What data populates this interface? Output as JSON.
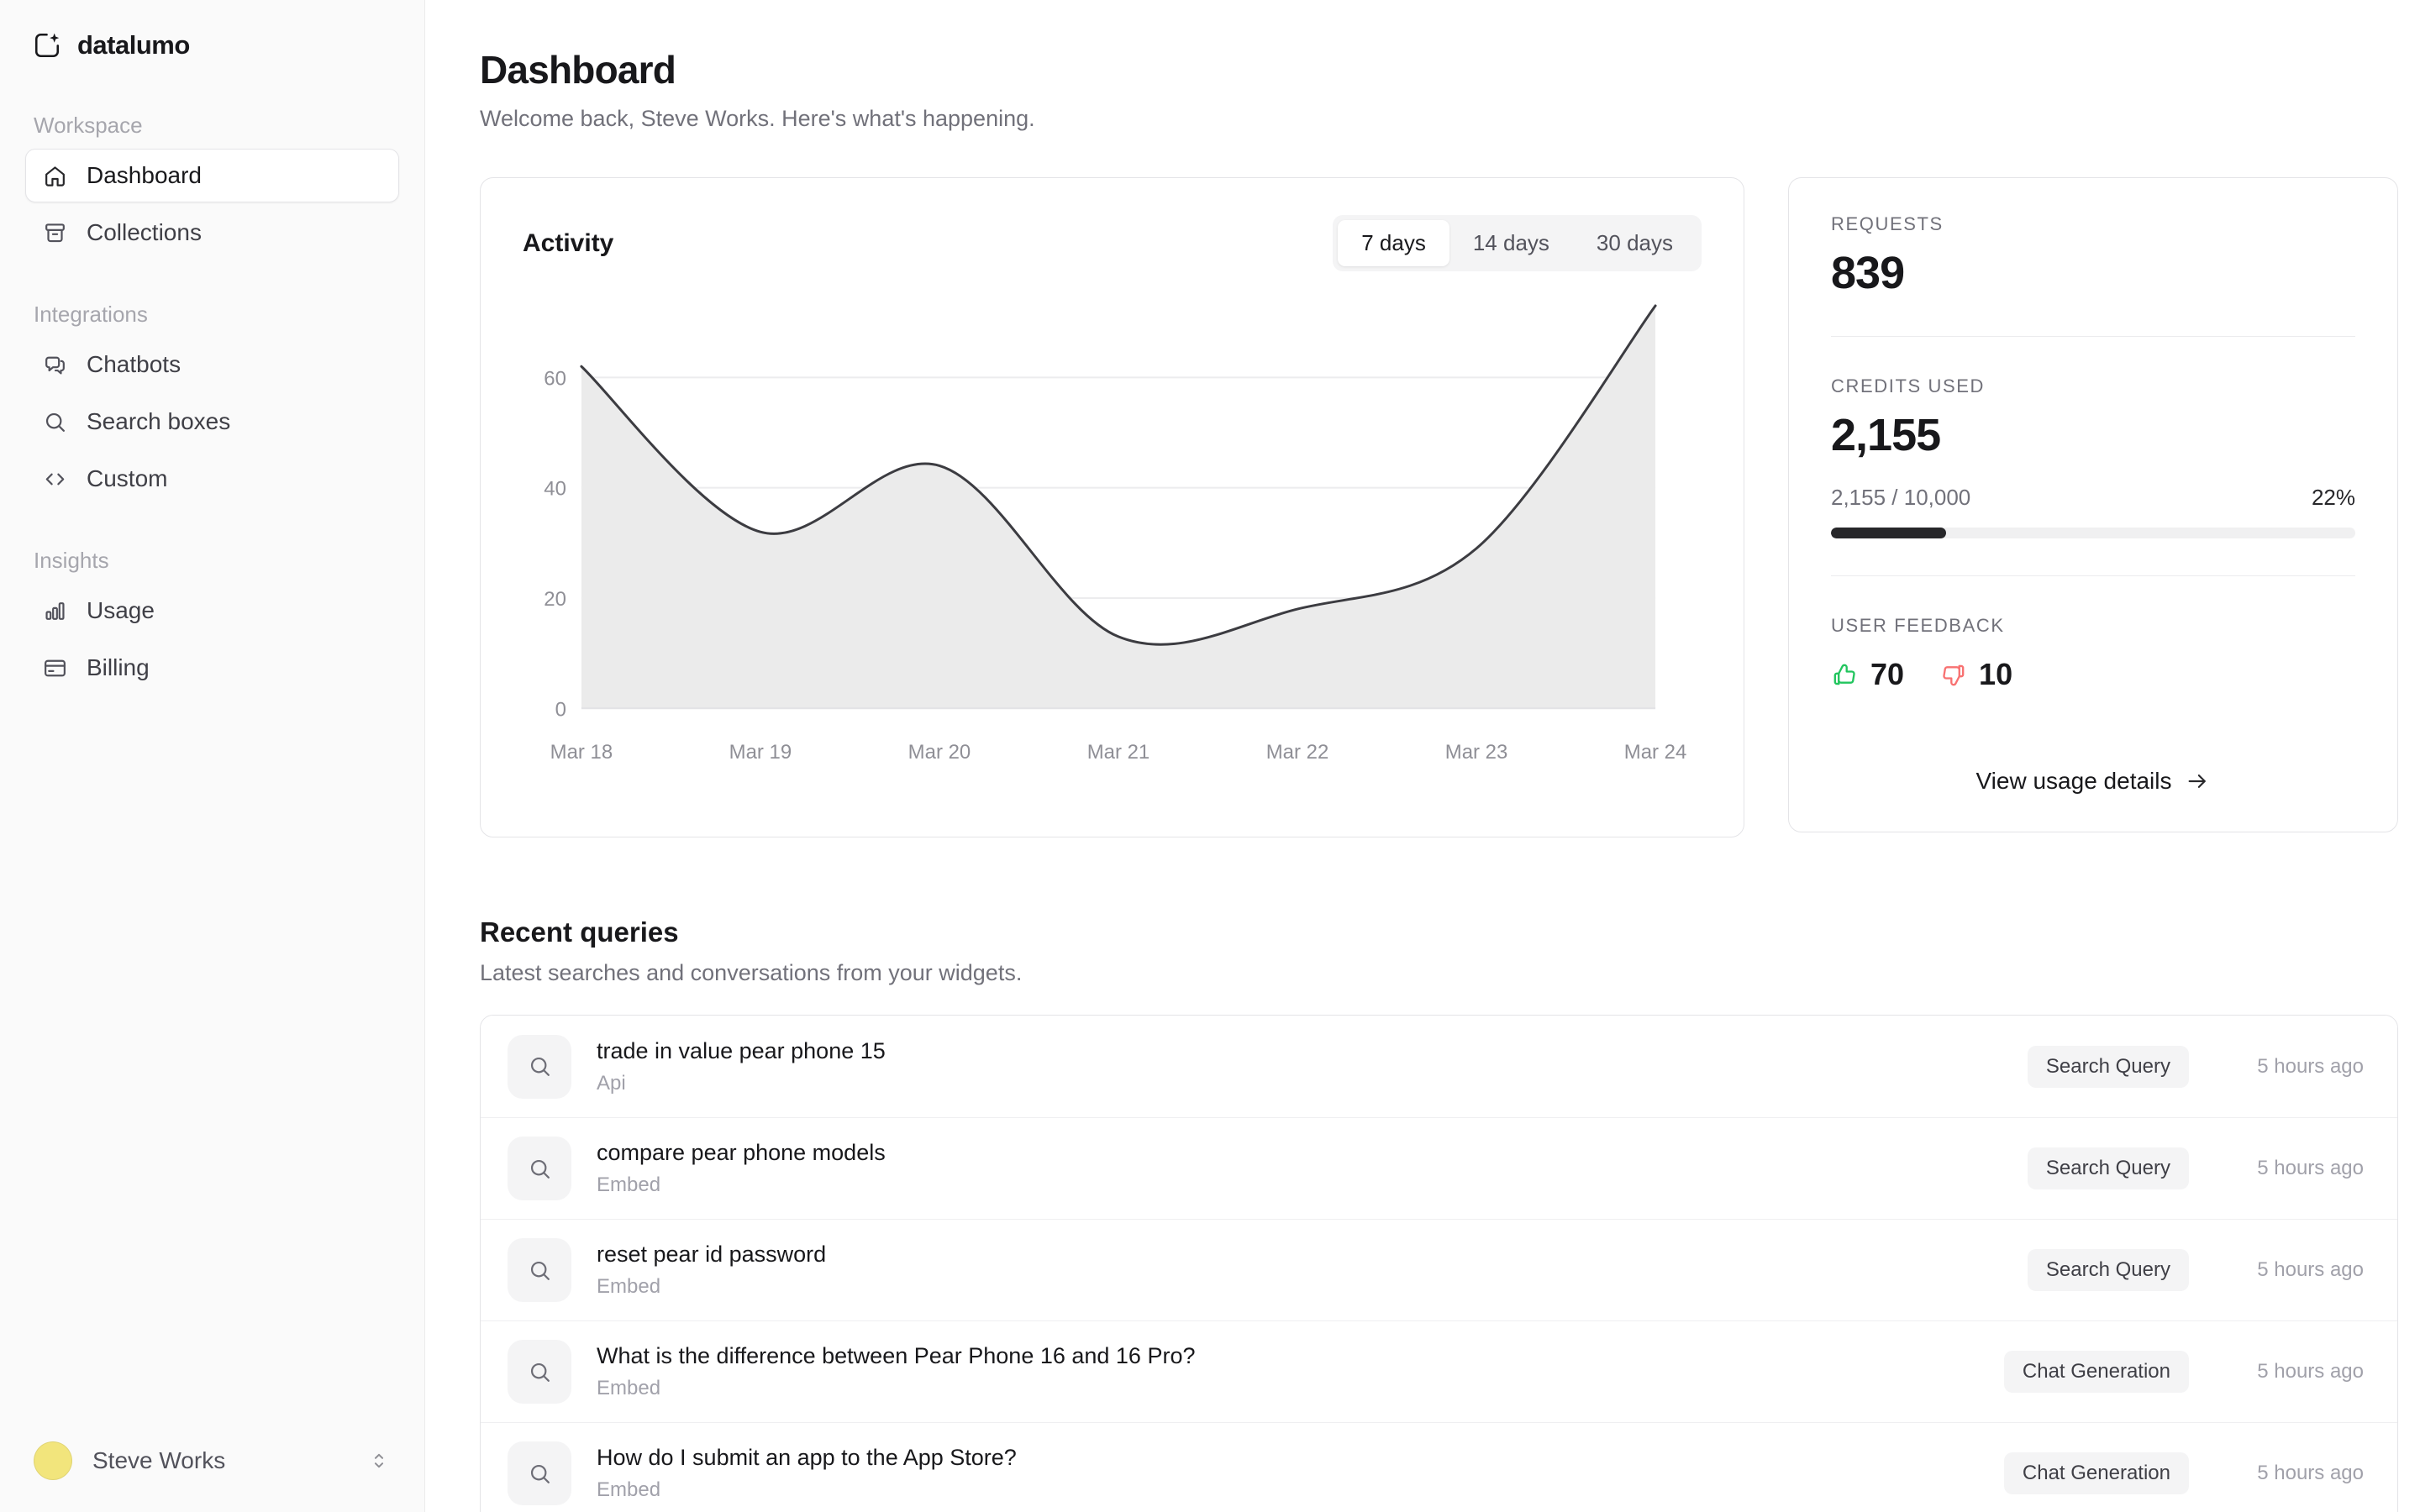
{
  "app": {
    "name": "datalumo"
  },
  "sidebar": {
    "groups": [
      {
        "label": "Workspace",
        "items": [
          {
            "label": "Dashboard",
            "icon": "home-icon",
            "active": true
          },
          {
            "label": "Collections",
            "icon": "collections-icon",
            "active": false
          }
        ]
      },
      {
        "label": "Integrations",
        "items": [
          {
            "label": "Chatbots",
            "icon": "chat-icon",
            "active": false
          },
          {
            "label": "Search boxes",
            "icon": "search-icon",
            "active": false
          },
          {
            "label": "Custom",
            "icon": "code-icon",
            "active": false
          }
        ]
      },
      {
        "label": "Insights",
        "items": [
          {
            "label": "Usage",
            "icon": "bar-chart-icon",
            "active": false
          },
          {
            "label": "Billing",
            "icon": "credit-card-icon",
            "active": false
          }
        ]
      }
    ],
    "user": {
      "name": "Steve Works"
    }
  },
  "header": {
    "title": "Dashboard",
    "subtitle": "Welcome back, Steve Works. Here's what's happening."
  },
  "activity": {
    "title": "Activity",
    "tabs": [
      {
        "label": "7 days",
        "active": true
      },
      {
        "label": "14 days",
        "active": false
      },
      {
        "label": "30 days",
        "active": false
      }
    ]
  },
  "chart_data": {
    "type": "area",
    "title": "Activity",
    "x": [
      "Mar 18",
      "Mar 19",
      "Mar 20",
      "Mar 21",
      "Mar 22",
      "Mar 23",
      "Mar 24"
    ],
    "series": [
      {
        "name": "Activity",
        "values": [
          62,
          32,
          44,
          13,
          18,
          29,
          73
        ]
      }
    ],
    "ylim": [
      0,
      76
    ],
    "yticks": [
      0,
      20,
      40,
      60
    ],
    "grid": true,
    "legend": "none"
  },
  "stats": {
    "requests": {
      "label": "REQUESTS",
      "value": "839"
    },
    "credits": {
      "label": "CREDITS USED",
      "value": "2,155",
      "ratio": "2,155 / 10,000",
      "percent_label": "22%",
      "percent": 22
    },
    "feedback": {
      "label": "USER FEEDBACK",
      "up": "70",
      "down": "10"
    },
    "link": {
      "label": "View usage details"
    }
  },
  "recent": {
    "title": "Recent queries",
    "subtitle": "Latest searches and conversations from your widgets.",
    "rows": [
      {
        "query": "trade in value pear phone 15",
        "source": "Api",
        "badge": "Search Query",
        "time": "5 hours ago"
      },
      {
        "query": "compare pear phone models",
        "source": "Embed",
        "badge": "Search Query",
        "time": "5 hours ago"
      },
      {
        "query": "reset pear id password",
        "source": "Embed",
        "badge": "Search Query",
        "time": "5 hours ago"
      },
      {
        "query": "What is the difference between Pear Phone 16 and 16 Pro?",
        "source": "Embed",
        "badge": "Chat Generation",
        "time": "5 hours ago"
      },
      {
        "query": "How do I submit an app to the App Store?",
        "source": "Embed",
        "badge": "Chat Generation",
        "time": "5 hours ago"
      }
    ]
  },
  "colors": {
    "chart_line": "#3c3c41",
    "chart_fill": "#ebebeb",
    "grid_line": "#ececee",
    "baseline": "#e2e2e5",
    "axis_text": "#8f8f96",
    "thumbs_up": "#22c55e",
    "thumbs_down": "#f87171",
    "progress_fill": "#27272a",
    "progress_track": "#f0f0f1"
  }
}
